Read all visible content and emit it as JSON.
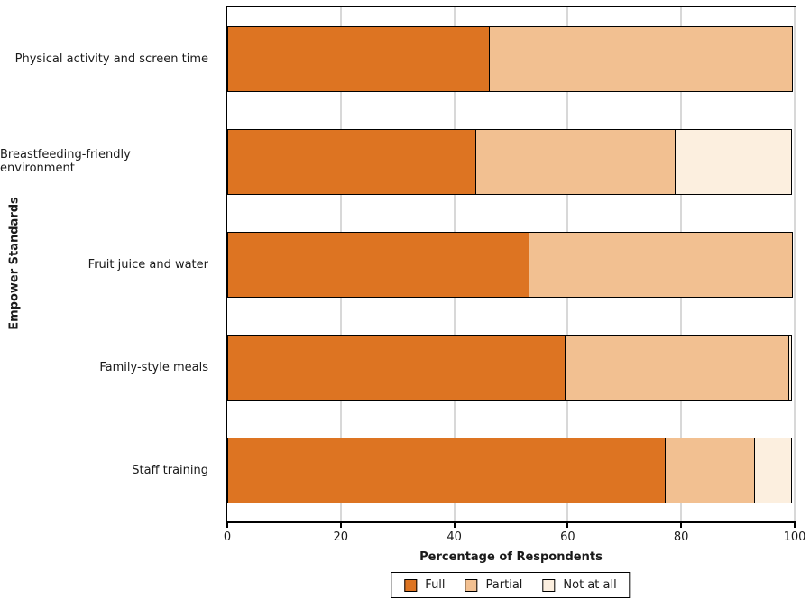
{
  "chart_data": {
    "type": "bar",
    "orientation": "horizontal",
    "stacked": true,
    "title": "",
    "xlabel": "Percentage of Respondents",
    "ylabel": "Empower Standards",
    "xlim": [
      0,
      100
    ],
    "xticks": [
      0,
      20,
      40,
      60,
      80,
      100
    ],
    "grid": "vertical",
    "legend_position": "bottom-center",
    "categories": [
      "Physical activity and screen time",
      "Breastfeeding-friendly environment",
      "Fruit juice and water",
      "Family-style meals",
      "Staff training"
    ],
    "series": [
      {
        "name": "Full",
        "color": "#dd7422",
        "values": [
          46.4,
          44.0,
          53.3,
          59.7,
          77.4
        ]
      },
      {
        "name": "Partial",
        "color": "#f2c091",
        "values": [
          53.6,
          35.3,
          46.7,
          39.6,
          16.0
        ]
      },
      {
        "name": "Not at all",
        "color": "#fcefdf",
        "values": [
          0,
          20.7,
          0,
          0.7,
          6.6
        ]
      }
    ]
  },
  "colors": {
    "bar_edge": "#000000",
    "gridline": "#d8d8d8",
    "axis": "#000000",
    "text": "#1a1a1a",
    "background": "#ffffff"
  }
}
